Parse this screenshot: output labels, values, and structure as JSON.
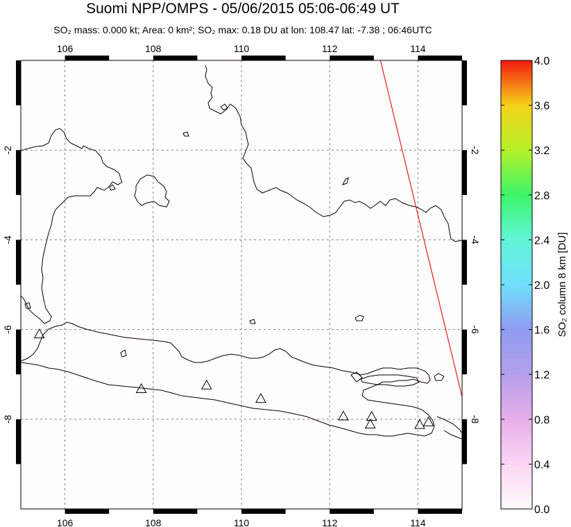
{
  "header": {
    "title": "Suomi NPP/OMPS - 05/06/2015 05:06-06:49 UT",
    "subtitle": "SO₂ mass: 0.000 kt; Area: 0 km²; SO₂ max: 0.18 DU at lon: 108.47 lat: -7.38 ; 06:46UTC"
  },
  "map": {
    "lon_range": [
      105,
      115
    ],
    "lat_range": [
      -10,
      0
    ],
    "lon_ticks": [
      106,
      108,
      110,
      112,
      114
    ],
    "lat_ticks": [
      -2,
      -4,
      -6,
      -8
    ],
    "lon_tick_labels": [
      "106",
      "108",
      "110",
      "112",
      "114"
    ],
    "lat_tick_labels_left": [
      "-2",
      "-4",
      "-6",
      "-8"
    ],
    "lat_tick_labels_right": [
      "-2",
      "-4",
      "-6",
      "-8"
    ],
    "gridlines": true,
    "colors": {
      "coastline": "#000000",
      "grid": "#808080",
      "orbit_edge": "#e31a1c",
      "background": "#fffdfd"
    },
    "volcanoes": [
      {
        "name": "volcano-krakatau",
        "lon": 105.42,
        "lat": -6.1
      },
      {
        "name": "volcano-tangkuban-perahu",
        "lon": 107.73,
        "lat": -7.32
      },
      {
        "name": "volcano-slamet",
        "lon": 109.21,
        "lat": -7.24
      },
      {
        "name": "volcano-merapi",
        "lon": 110.44,
        "lat": -7.54
      },
      {
        "name": "volcano-kelut",
        "lon": 112.31,
        "lat": -7.93
      },
      {
        "name": "volcano-bromo",
        "lon": 112.95,
        "lat": -7.94
      },
      {
        "name": "volcano-semeru",
        "lon": 112.92,
        "lat": -8.11
      },
      {
        "name": "volcano-raung",
        "lon": 114.04,
        "lat": -8.12
      },
      {
        "name": "volcano-ijen",
        "lon": 114.24,
        "lat": -8.06
      }
    ],
    "orbit_edge_line": [
      [
        113.15,
        0.0
      ],
      [
        115.0,
        -7.5
      ]
    ]
  },
  "colorbar": {
    "label": "SO₂ column 8 km [DU]",
    "min": 0.0,
    "max": 4.0,
    "tick_values": [
      0.0,
      0.4,
      0.8,
      1.2,
      1.6,
      2.0,
      2.4,
      2.8,
      3.2,
      3.6,
      4.0
    ],
    "tick_labels": [
      "0.0",
      "0.4",
      "0.8",
      "1.2",
      "1.6",
      "2.0",
      "2.4",
      "2.8",
      "3.2",
      "3.6",
      "4.0"
    ],
    "gradient_stops": [
      {
        "value": 0.0,
        "color": "#fffafa"
      },
      {
        "value": 0.4,
        "color": "#fbd6f4"
      },
      {
        "value": 0.8,
        "color": "#e7aeea"
      },
      {
        "value": 1.2,
        "color": "#b4a0ea"
      },
      {
        "value": 1.6,
        "color": "#8f9cf0"
      },
      {
        "value": 2.0,
        "color": "#70dffc"
      },
      {
        "value": 2.4,
        "color": "#60f5d8"
      },
      {
        "value": 2.8,
        "color": "#3cf56a"
      },
      {
        "value": 3.2,
        "color": "#b5f028"
      },
      {
        "value": 3.6,
        "color": "#f5d21a"
      },
      {
        "value": 4.0,
        "color": "#f31a10"
      }
    ]
  }
}
